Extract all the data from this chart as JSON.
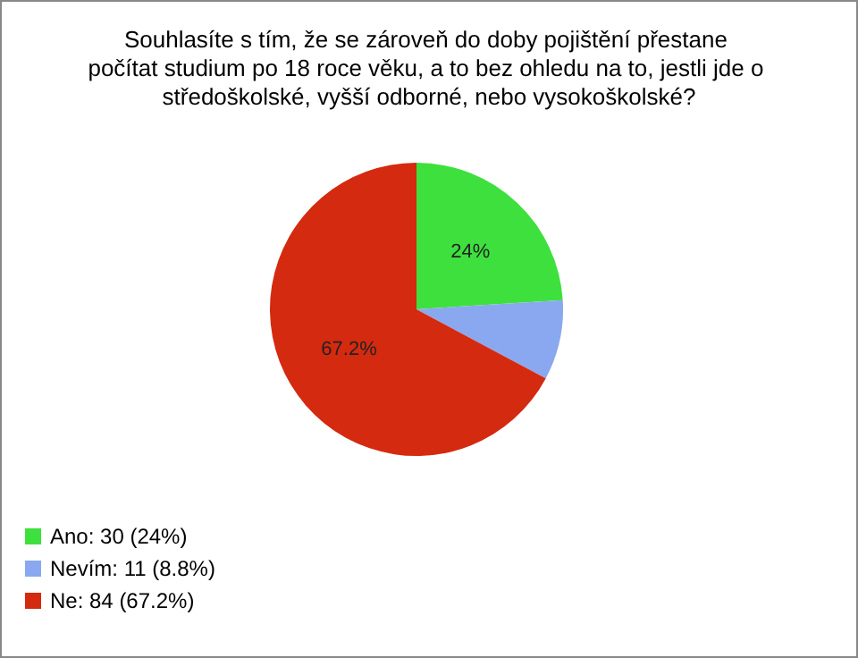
{
  "chart_data": {
    "type": "pie",
    "title": "Souhlasíte s tím, že se zároveň do doby pojištění přestane počítat studium po 18 roce věku, a to bez ohledu na to, jestli jde o středoškolské, vyšší odborné, nebo vysokoškolské?",
    "categories": [
      "Ano: 30 (24%)",
      "Nevím: 11 (8.8%)",
      "Ne: 84 (67.2%)"
    ],
    "values": [
      24,
      8.8,
      67.2
    ],
    "colors": [
      "#3ee03e",
      "#8aa8f0",
      "#d42a10"
    ],
    "value_labels": [
      "24%",
      null,
      "67.2%"
    ],
    "legend": "bottom left"
  }
}
